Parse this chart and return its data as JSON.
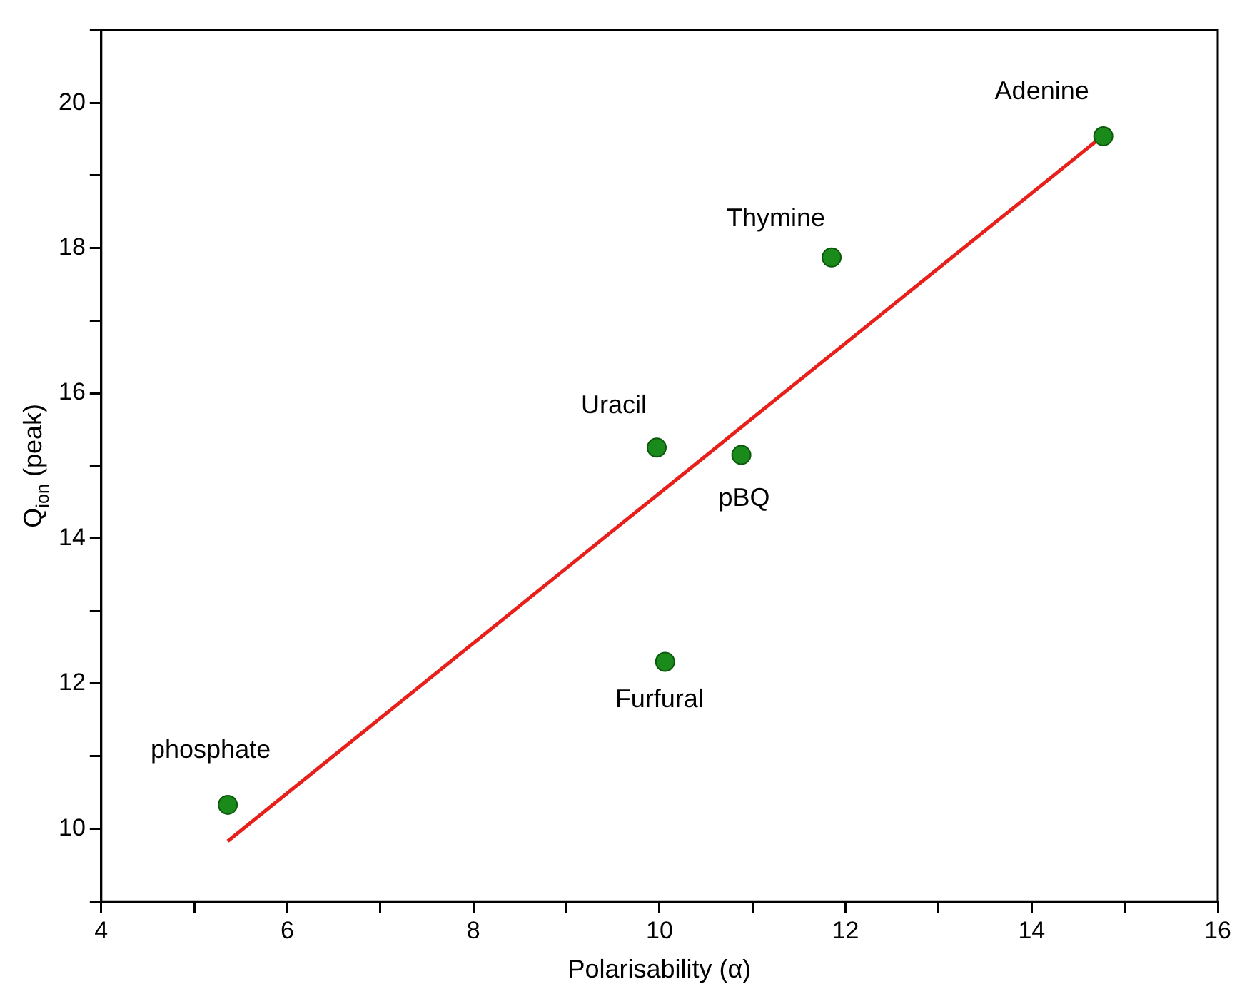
{
  "chart_data": {
    "type": "scatter",
    "xlabel": "Polarisability (α)",
    "ylabel": "Q$_{ion}$ (peak)",
    "xlim": [
      4,
      16
    ],
    "ylim": [
      9,
      21
    ],
    "xticks": [
      4,
      {
        "value": 5,
        "label": null
      },
      6,
      {
        "value": 7,
        "label": null
      },
      8,
      {
        "value": 9,
        "label": null
      },
      10,
      {
        "value": 11,
        "label": null
      },
      12,
      {
        "value": 13,
        "label": null
      },
      14,
      {
        "value": 15,
        "label": null
      },
      16
    ],
    "yticks": [
      {
        "value": 9,
        "label": null
      },
      10,
      {
        "value": 11,
        "label": null
      },
      12,
      {
        "value": 13,
        "label": null
      },
      14,
      {
        "value": 15,
        "label": null
      },
      16,
      {
        "value": 17,
        "label": null
      },
      18,
      {
        "value": 19,
        "label": null
      },
      20,
      {
        "value": 21,
        "label": null
      }
    ],
    "grid": false,
    "legend": false,
    "marker": "circle",
    "series": [
      {
        "color": "#1a8a1a",
        "x": [
          14.77,
          11.85,
          9.97,
          10.88,
          10.06,
          5.36
        ],
        "values": [
          19.54,
          17.87,
          15.25,
          15.15,
          12.3,
          10.33
        ]
      },
      {
        "type": "line",
        "color": "#e8201c",
        "line_style": "solid",
        "marker": "none",
        "x": [
          5.36,
          14.72
        ],
        "values": [
          9.83,
          19.5
        ]
      }
    ],
    "annotations": [
      {
        "text": "Adenine",
        "x": 14.77,
        "y": 19.54
      },
      {
        "text": "Thymine",
        "x": 11.85,
        "y": 17.87
      },
      {
        "text": "Uracil",
        "x": 9.97,
        "y": 15.25
      },
      {
        "text": "pBQ",
        "x": 10.88,
        "y": 15.15
      },
      {
        "text": "Furfural",
        "x": 10.06,
        "y": 12.3
      },
      {
        "text": "phosphate",
        "x": 5.36,
        "y": 10.33
      }
    ]
  }
}
